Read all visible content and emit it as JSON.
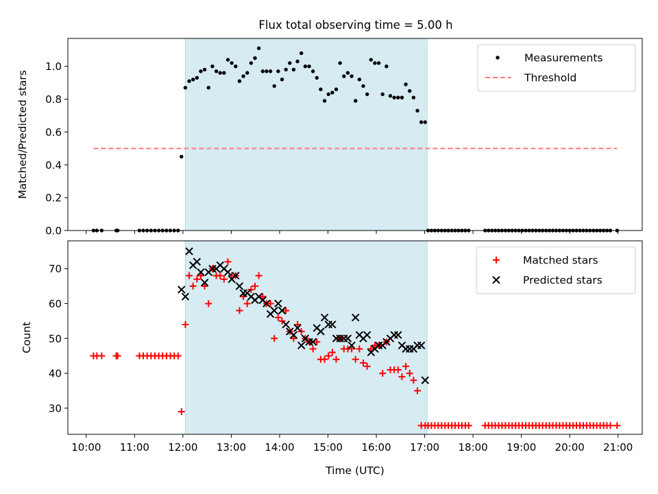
{
  "chart_data": [
    {
      "type": "scatter",
      "title": "Flux total observing time = 5.00 h",
      "xlabel": "",
      "ylabel": "Matched/Predicted stars",
      "xlim": [
        9.62,
        21.5
      ],
      "ylim": [
        0,
        1.17
      ],
      "yticks": [
        0.0,
        0.2,
        0.4,
        0.6,
        0.8,
        1.0
      ],
      "ytick_labels": [
        "0.0",
        "0.2",
        "0.4",
        "0.6",
        "0.8",
        "1.0"
      ],
      "xticks": [
        10,
        11,
        12,
        13,
        14,
        15,
        16,
        17,
        18,
        19,
        20,
        21
      ],
      "show_xtick_labels": false,
      "shaded_span": [
        12.05,
        17.05
      ],
      "shade_color": "#add8e6",
      "grid": false,
      "legend_position": "upper right",
      "series": [
        {
          "name": "Measurements",
          "marker": "dot",
          "color": "#000000",
          "x": [
            10.15,
            10.22,
            10.32,
            10.62,
            10.65,
            11.1,
            11.18,
            11.26,
            11.34,
            11.42,
            11.5,
            11.58,
            11.66,
            11.74,
            11.82,
            11.9,
            11.97,
            12.05,
            12.13,
            12.21,
            12.29,
            12.37,
            12.45,
            12.53,
            12.61,
            12.69,
            12.77,
            12.85,
            12.93,
            13.01,
            13.09,
            13.17,
            13.25,
            13.33,
            13.41,
            13.49,
            13.57,
            13.65,
            13.73,
            13.81,
            13.89,
            13.97,
            14.05,
            14.13,
            14.21,
            14.29,
            14.37,
            14.45,
            14.53,
            14.61,
            14.69,
            14.77,
            14.85,
            14.93,
            15.01,
            15.09,
            15.17,
            15.25,
            15.33,
            15.41,
            15.49,
            15.57,
            15.65,
            15.73,
            15.81,
            15.89,
            15.97,
            16.05,
            16.13,
            16.21,
            16.29,
            16.37,
            16.45,
            16.53,
            16.61,
            16.69,
            16.77,
            16.85,
            16.93,
            17.01,
            17.07,
            17.14,
            17.21,
            17.28,
            17.35,
            17.42,
            17.49,
            17.56,
            17.63,
            17.7,
            17.77,
            17.84,
            17.91,
            18.25,
            18.32,
            18.39,
            18.46,
            18.53,
            18.6,
            18.67,
            18.74,
            18.81,
            18.88,
            18.95,
            19.02,
            19.09,
            19.16,
            19.23,
            19.3,
            19.37,
            19.44,
            19.51,
            19.58,
            19.65,
            19.72,
            19.79,
            19.86,
            19.93,
            20.0,
            20.07,
            20.14,
            20.21,
            20.28,
            20.35,
            20.42,
            20.49,
            20.56,
            20.63,
            20.7,
            20.77,
            20.84,
            20.98
          ],
          "y": [
            0,
            0,
            0,
            0,
            0,
            0,
            0,
            0,
            0,
            0,
            0,
            0,
            0,
            0,
            0,
            0,
            0.45,
            0.87,
            0.91,
            0.92,
            0.93,
            0.97,
            0.98,
            0.87,
            1.0,
            0.97,
            0.96,
            0.96,
            1.04,
            1.02,
            1.0,
            0.91,
            0.94,
            0.96,
            1.02,
            1.05,
            1.11,
            0.97,
            0.97,
            0.97,
            0.88,
            0.97,
            0.92,
            0.98,
            1.02,
            0.98,
            1.03,
            1.08,
            1.0,
            1.0,
            0.97,
            0.93,
            0.86,
            0.79,
            0.83,
            0.84,
            0.86,
            1.02,
            0.94,
            0.96,
            0.94,
            0.79,
            0.92,
            0.88,
            0.83,
            1.04,
            1.02,
            1.02,
            0.83,
            1.0,
            0.82,
            0.81,
            0.81,
            0.81,
            0.89,
            0.85,
            0.81,
            0.73,
            0.66,
            0.66,
            0,
            0,
            0,
            0,
            0,
            0,
            0,
            0,
            0,
            0,
            0,
            0,
            0,
            0,
            0,
            0,
            0,
            0,
            0,
            0,
            0,
            0,
            0,
            0,
            0,
            0,
            0,
            0,
            0,
            0,
            0,
            0,
            0,
            0,
            0,
            0,
            0,
            0,
            0,
            0,
            0,
            0,
            0,
            0,
            0,
            0,
            0,
            0,
            0,
            0,
            0,
            0
          ]
        },
        {
          "name": "Threshold",
          "marker": "dashed-line",
          "color": "#ff7777",
          "x": [
            10.15,
            20.98
          ],
          "y": [
            0.5,
            0.5
          ]
        }
      ]
    },
    {
      "type": "scatter",
      "title": "",
      "xlabel": "Time (UTC)",
      "ylabel": "Count",
      "xlim": [
        9.62,
        21.5
      ],
      "ylim": [
        22.5,
        78
      ],
      "yticks": [
        30,
        40,
        50,
        60,
        70
      ],
      "ytick_labels": [
        "30",
        "40",
        "50",
        "60",
        "70"
      ],
      "xticks": [
        10,
        11,
        12,
        13,
        14,
        15,
        16,
        17,
        18,
        19,
        20,
        21
      ],
      "xtick_labels": [
        "10:00",
        "11:00",
        "12:00",
        "13:00",
        "14:00",
        "15:00",
        "16:00",
        "17:00",
        "18:00",
        "19:00",
        "20:00",
        "21:00"
      ],
      "shaded_span": [
        12.05,
        17.05
      ],
      "shade_color": "#add8e6",
      "grid": false,
      "legend_position": "upper right",
      "series": [
        {
          "name": "Matched stars",
          "marker": "plus",
          "color": "#ff0000",
          "x": [
            10.15,
            10.22,
            10.32,
            10.62,
            10.65,
            11.1,
            11.18,
            11.26,
            11.34,
            11.42,
            11.5,
            11.58,
            11.66,
            11.74,
            11.82,
            11.9,
            11.97,
            12.05,
            12.13,
            12.21,
            12.29,
            12.37,
            12.45,
            12.53,
            12.61,
            12.69,
            12.77,
            12.85,
            12.93,
            13.01,
            13.09,
            13.17,
            13.25,
            13.33,
            13.41,
            13.49,
            13.57,
            13.65,
            13.73,
            13.81,
            13.89,
            13.97,
            14.05,
            14.13,
            14.21,
            14.29,
            14.37,
            14.45,
            14.53,
            14.61,
            14.69,
            14.77,
            14.85,
            14.93,
            15.01,
            15.09,
            15.17,
            15.25,
            15.33,
            15.41,
            15.49,
            15.57,
            15.65,
            15.73,
            15.81,
            15.89,
            15.97,
            16.05,
            16.13,
            16.21,
            16.29,
            16.37,
            16.45,
            16.53,
            16.61,
            16.69,
            16.77,
            16.85,
            16.93,
            17.01,
            17.07,
            17.14,
            17.21,
            17.28,
            17.35,
            17.42,
            17.49,
            17.56,
            17.63,
            17.7,
            17.77,
            17.84,
            17.91,
            18.25,
            18.32,
            18.39,
            18.46,
            18.53,
            18.6,
            18.67,
            18.74,
            18.81,
            18.88,
            18.95,
            19.02,
            19.09,
            19.16,
            19.23,
            19.3,
            19.37,
            19.44,
            19.51,
            19.58,
            19.65,
            19.72,
            19.79,
            19.86,
            19.93,
            20.0,
            20.07,
            20.14,
            20.21,
            20.28,
            20.35,
            20.42,
            20.49,
            20.56,
            20.63,
            20.7,
            20.77,
            20.84,
            20.98
          ],
          "y": [
            45,
            45,
            45,
            45,
            45,
            45,
            45,
            45,
            45,
            45,
            45,
            45,
            45,
            45,
            45,
            45,
            29,
            54,
            68,
            65,
            67,
            68,
            65,
            60,
            70,
            68,
            68,
            67,
            72,
            68,
            68,
            58,
            62,
            60,
            64,
            65,
            68,
            62,
            60,
            60,
            50,
            56,
            55,
            58,
            52,
            50,
            54,
            52,
            50,
            49,
            47,
            49,
            44,
            44,
            45,
            46,
            44,
            50,
            47,
            47,
            47,
            44,
            47,
            43,
            42,
            47,
            48,
            48,
            40,
            49,
            41,
            41,
            41,
            39,
            42,
            40,
            38,
            35,
            25,
            25,
            25,
            25,
            25,
            25,
            25,
            25,
            25,
            25,
            25,
            25,
            25,
            25,
            25,
            25,
            25,
            25,
            25,
            25,
            25,
            25,
            25,
            25,
            25,
            25,
            25,
            25,
            25,
            25,
            25,
            25,
            25,
            25,
            25,
            25,
            25,
            25,
            25,
            25,
            25,
            25,
            25,
            25,
            25,
            25,
            25,
            25,
            25,
            25,
            25,
            25,
            25,
            25
          ]
        },
        {
          "name": "Predicted stars",
          "marker": "x",
          "color": "#000000",
          "x": [
            11.97,
            12.05,
            12.13,
            12.21,
            12.29,
            12.37,
            12.45,
            12.53,
            12.61,
            12.69,
            12.77,
            12.85,
            12.93,
            13.01,
            13.09,
            13.17,
            13.25,
            13.33,
            13.41,
            13.49,
            13.57,
            13.65,
            13.73,
            13.81,
            13.89,
            13.97,
            14.05,
            14.13,
            14.21,
            14.29,
            14.37,
            14.45,
            14.53,
            14.61,
            14.69,
            14.77,
            14.85,
            14.93,
            15.01,
            15.09,
            15.17,
            15.25,
            15.33,
            15.41,
            15.49,
            15.57,
            15.65,
            15.73,
            15.81,
            15.89,
            15.97,
            16.05,
            16.13,
            16.21,
            16.29,
            16.37,
            16.45,
            16.53,
            16.61,
            16.69,
            16.77,
            16.85,
            16.93,
            17.01
          ],
          "y": [
            64,
            62,
            75,
            71,
            72,
            69,
            66,
            69,
            70,
            70,
            71,
            70,
            69,
            67,
            68,
            65,
            63,
            63,
            62,
            61,
            62,
            61,
            60,
            57,
            58,
            60,
            58,
            54,
            52,
            51,
            53,
            48,
            50,
            49,
            49,
            53,
            52,
            56,
            54,
            54,
            50,
            50,
            50,
            50,
            48,
            56,
            51,
            50,
            51,
            46,
            47,
            48,
            48,
            49,
            50,
            51,
            51,
            48,
            47,
            47,
            47,
            48,
            48,
            38
          ]
        }
      ]
    }
  ]
}
